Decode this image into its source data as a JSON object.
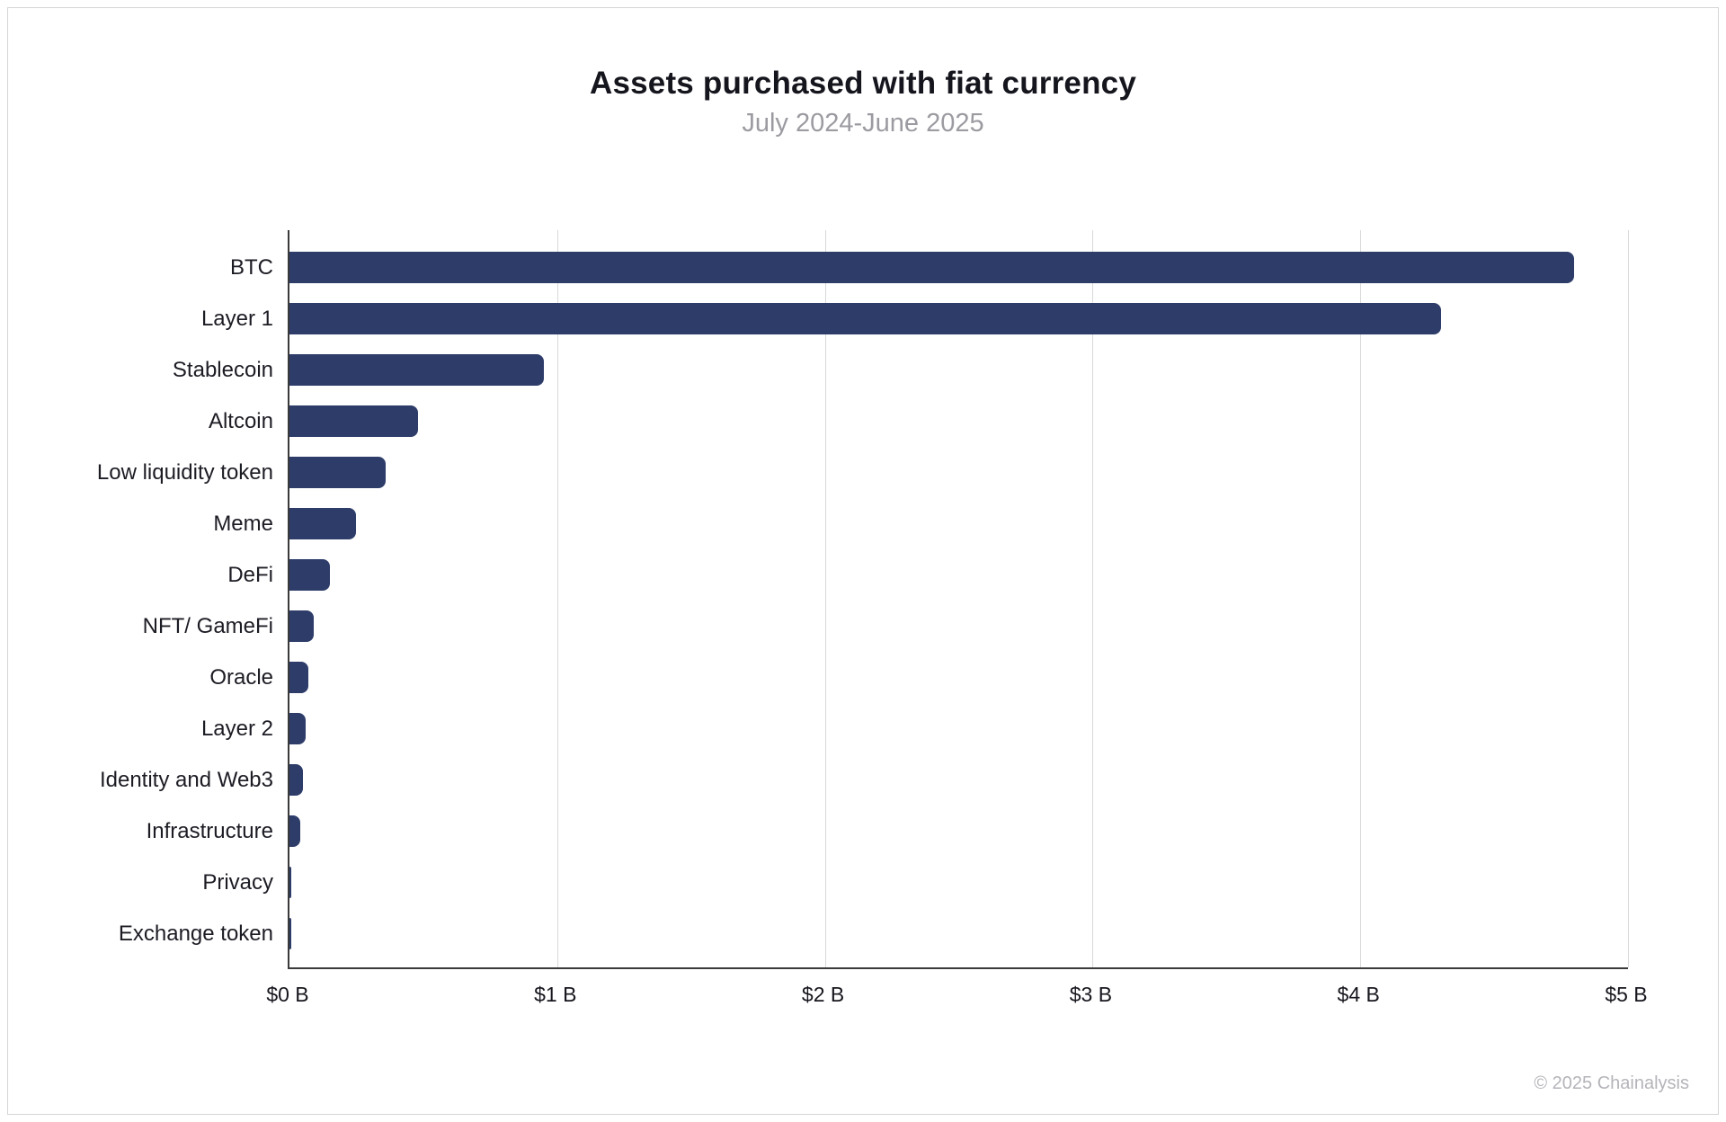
{
  "chart_data": {
    "type": "bar",
    "orientation": "horizontal",
    "title": "Assets purchased with fiat currency",
    "subtitle": "July 2024-June 2025",
    "categories": [
      "BTC",
      "Layer 1",
      "Stablecoin",
      "Altcoin",
      "Low liquidity token",
      "Meme",
      "DeFi",
      "NFT/ GameFi",
      "Oracle",
      "Layer 2",
      "Identity and Web3",
      "Infrastructure",
      "Privacy",
      "Exchange token"
    ],
    "values": [
      4.8,
      4.3,
      0.95,
      0.48,
      0.36,
      0.25,
      0.15,
      0.09,
      0.07,
      0.06,
      0.05,
      0.04,
      0.005,
      0.005
    ],
    "unit": "USD billions",
    "xlabel": "",
    "ylabel": "",
    "xlim": [
      0,
      5
    ],
    "x_ticks": [
      "$0 B",
      "$1 B",
      "$2 B",
      "$3 B",
      "$4 B",
      "$5 B"
    ],
    "grid": true,
    "legend": false,
    "bar_color": "#2d3c69",
    "gridline_color": "#d9d9d9",
    "axis_color": "#3a3a3a"
  },
  "footer": {
    "copyright": "© 2025 Chainalysis"
  }
}
